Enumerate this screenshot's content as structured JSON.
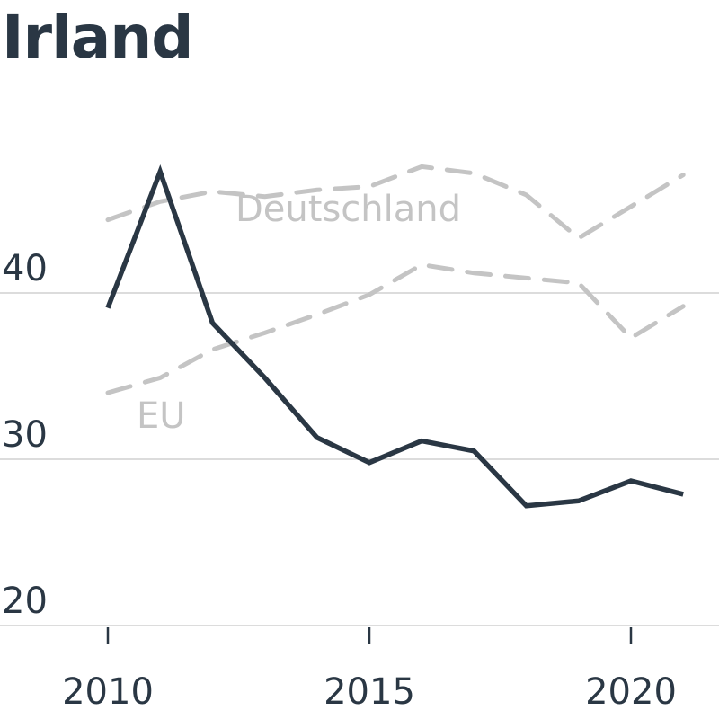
{
  "chart_data": {
    "type": "line",
    "title": "Irland",
    "x": [
      2010,
      2011,
      2012,
      2013,
      2014,
      2015,
      2016,
      2017,
      2018,
      2019,
      2020,
      2021
    ],
    "xticks": [
      2010,
      2015,
      2020
    ],
    "yticks": [
      20,
      30,
      40
    ],
    "xlim": [
      2010,
      2021
    ],
    "ylim": [
      20,
      50
    ],
    "grid": true,
    "series": [
      {
        "name": "",
        "role": "main",
        "values": [
          39.1,
          47.3,
          38.2,
          34.9,
          31.3,
          29.8,
          31.1,
          30.5,
          27.2,
          27.5,
          28.7,
          27.9
        ]
      },
      {
        "name": "Deutschland",
        "role": "reference",
        "values": [
          44.4,
          45.5,
          46.1,
          45.8,
          46.2,
          46.4,
          47.6,
          47.2,
          45.9,
          43.3,
          45.2,
          47.1
        ]
      },
      {
        "name": "EU",
        "role": "reference",
        "values": [
          34.0,
          34.9,
          36.6,
          37.6,
          38.7,
          39.9,
          41.7,
          41.2,
          40.9,
          40.6,
          37.3,
          39.2
        ]
      }
    ]
  }
}
